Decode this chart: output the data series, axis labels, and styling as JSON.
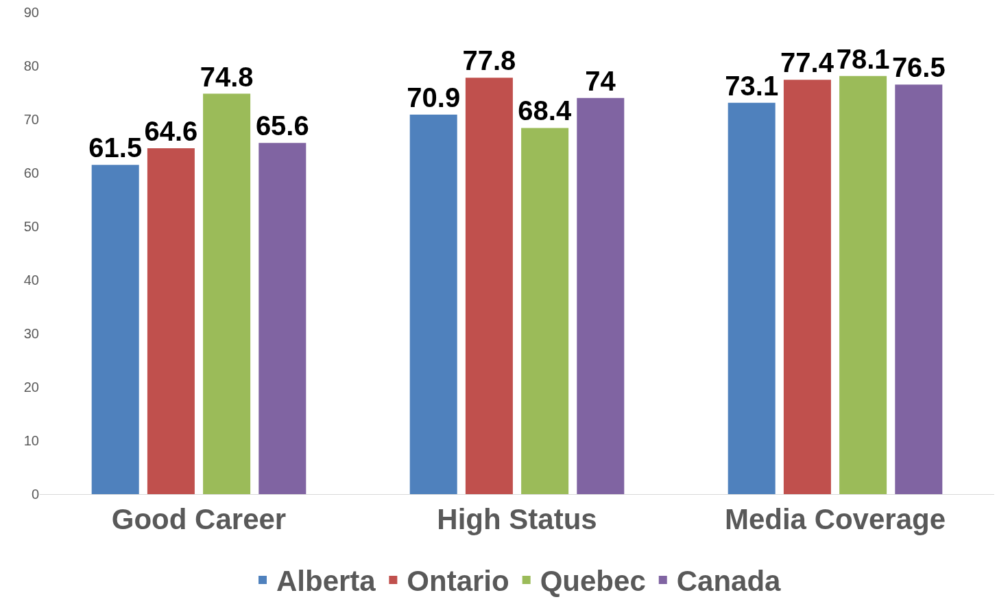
{
  "chart_data": {
    "type": "bar",
    "categories": [
      "Good Career",
      "High Status",
      "Media Coverage"
    ],
    "series": [
      {
        "name": "Alberta",
        "color": "#4f81bd",
        "values": [
          61.5,
          70.9,
          73.1
        ]
      },
      {
        "name": "Ontario",
        "color": "#c0504d",
        "values": [
          64.6,
          77.8,
          77.4
        ]
      },
      {
        "name": "Quebec",
        "color": "#9bbb59",
        "values": [
          74.8,
          68.4,
          78.1
        ]
      },
      {
        "name": "Canada",
        "color": "#8064a2",
        "values": [
          65.6,
          74,
          76.5
        ]
      }
    ],
    "ylim": [
      0,
      90
    ],
    "yticks": [
      0,
      10,
      20,
      30,
      40,
      50,
      60,
      70,
      80,
      90
    ],
    "grid": false,
    "legend": "bottom",
    "data_labels": true
  }
}
